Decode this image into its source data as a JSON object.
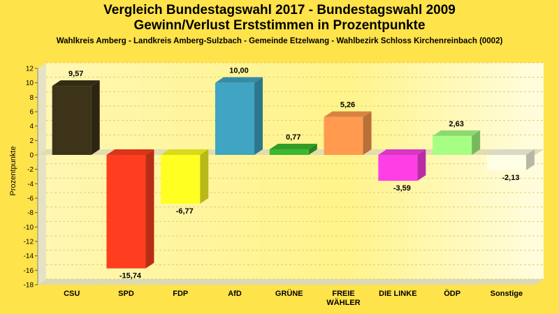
{
  "chart_data": {
    "type": "bar",
    "title": "Vergleich Bundestagswahl 2017 - Bundestagswahl 2009",
    "subtitle": "Gewinn/Verlust Erststimmen in Prozentpunkte",
    "caption": "Wahlkreis Amberg - Landkreis Amberg-Sulzbach - Gemeinde Etzelwang - Wahlbezirk Schloss Kirchenreinbach (0002)",
    "xlabel": "",
    "ylabel": "Prozentpunkte",
    "ylim": [
      -18,
      12
    ],
    "yticks": [
      "12",
      "10",
      "8",
      "6",
      "4",
      "2",
      "0",
      "-2",
      "-4",
      "-6",
      "-8",
      "-10",
      "-12",
      "-14",
      "-16",
      "-18"
    ],
    "grid": true,
    "categories": [
      {
        "lines": [
          "CSU"
        ]
      },
      {
        "lines": [
          "SPD"
        ]
      },
      {
        "lines": [
          "FDP"
        ]
      },
      {
        "lines": [
          "AfD"
        ]
      },
      {
        "lines": [
          "GRÜNE"
        ]
      },
      {
        "lines": [
          "FREIE",
          "WÄHLER"
        ]
      },
      {
        "lines": [
          "DIE LINKE"
        ]
      },
      {
        "lines": [
          "ÖDP"
        ]
      },
      {
        "lines": [
          "Sonstige"
        ]
      }
    ],
    "values": [
      9.57,
      -15.74,
      -6.77,
      10.0,
      0.77,
      5.26,
      -3.59,
      2.63,
      -2.13
    ],
    "value_labels": [
      "9,57",
      "-15,74",
      "-6,77",
      "10,00",
      "0,77",
      "5,26",
      "-3,59",
      "2,63",
      "-2,13"
    ],
    "colors": [
      "#3D3319",
      "#FF3E1F",
      "#FFFF22",
      "#3FA5C2",
      "#3CB82E",
      "#FF9A4E",
      "#FF3FE6",
      "#A6FF82",
      "#FFFFE6"
    ]
  }
}
